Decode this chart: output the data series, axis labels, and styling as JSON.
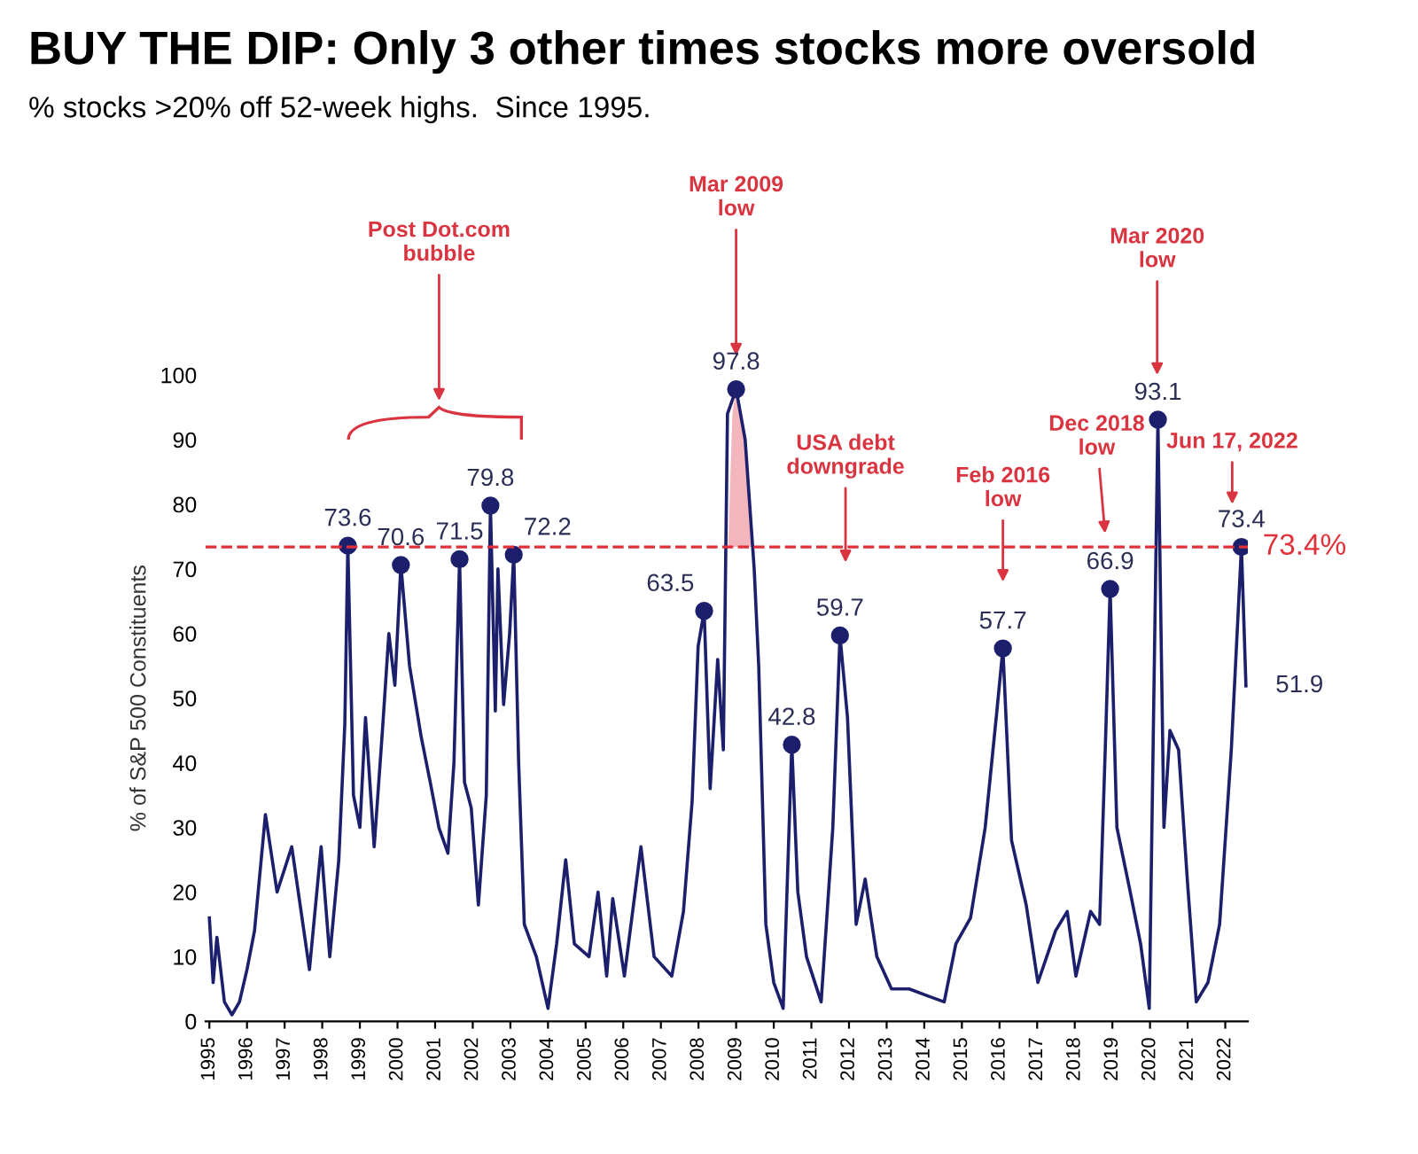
{
  "chart_data": {
    "type": "line",
    "title": "BUY THE DIP: Only 3 other times stocks more oversold",
    "subtitle": "% stocks >20% off 52-week highs.  Since 1995.",
    "ylabel": "% of S&P 500 Constituents",
    "xlim": [
      1994.9,
      2022.6
    ],
    "xticks": [
      1995,
      1996,
      1997,
      1998,
      1999,
      2000,
      2001,
      2002,
      2003,
      2004,
      2005,
      2006,
      2007,
      2008,
      2009,
      2010,
      2011,
      2012,
      2013,
      2014,
      2015,
      2016,
      2017,
      2018,
      2019,
      2020,
      2021,
      2022
    ],
    "ylim": [
      0,
      100
    ],
    "yticks": [
      0,
      10,
      20,
      30,
      40,
      50,
      60,
      70,
      80,
      90,
      100
    ],
    "grid": false,
    "legend": false,
    "marker": "none",
    "line_style": "solid",
    "series": [
      {
        "color": "#1c1f6b",
        "x": [
          1995.0,
          1995.1,
          1995.2,
          1995.4,
          1995.6,
          1995.8,
          1996.0,
          1996.2,
          1996.49,
          1996.8,
          1997.19,
          1997.66,
          1997.97,
          1998.2,
          1998.44,
          1998.6,
          1998.68,
          1998.83,
          1999.0,
          1999.15,
          1999.38,
          1999.6,
          1999.77,
          1999.93,
          2000.09,
          2000.32,
          2000.63,
          2000.87,
          2001.1,
          2001.34,
          2001.5,
          2001.65,
          2001.78,
          2001.96,
          2002.15,
          2002.36,
          2002.47,
          2002.6,
          2002.67,
          2002.82,
          2002.98,
          2003.09,
          2003.22,
          2003.37,
          2003.69,
          2004.0,
          2004.23,
          2004.47,
          2004.7,
          2005.09,
          2005.33,
          2005.56,
          2005.72,
          2006.03,
          2006.47,
          2006.82,
          2007.29,
          2007.6,
          2007.83,
          2007.99,
          2008.15,
          2008.31,
          2008.51,
          2008.66,
          2008.77,
          2009.0,
          2009.24,
          2009.48,
          2009.6,
          2009.79,
          2010.0,
          2010.25,
          2010.48,
          2010.64,
          2010.87,
          2011.26,
          2011.57,
          2011.76,
          2011.96,
          2012.19,
          2012.43,
          2012.74,
          2013.13,
          2013.6,
          2014.06,
          2014.53,
          2014.84,
          2015.23,
          2015.62,
          2015.93,
          2016.09,
          2016.32,
          2016.71,
          2017.02,
          2017.49,
          2017.8,
          2018.03,
          2018.42,
          2018.66,
          2018.81,
          2018.94,
          2019.12,
          2019.44,
          2019.75,
          2019.98,
          2020.21,
          2020.37,
          2020.53,
          2020.76,
          2020.99,
          2021.23,
          2021.54,
          2021.85,
          2022.16,
          2022.43,
          2022.55
        ],
        "values": [
          16,
          6,
          13,
          3,
          1,
          3,
          8,
          14,
          32,
          20,
          27,
          8,
          27,
          10,
          25,
          46,
          73.6,
          35,
          30,
          47,
          27,
          45,
          60,
          52,
          70.6,
          55,
          44,
          37,
          30,
          26,
          40,
          71.5,
          37,
          33,
          18,
          35,
          79.8,
          48,
          70,
          49,
          60,
          72.2,
          40,
          15,
          10,
          2,
          12,
          25,
          12,
          10,
          20,
          7,
          19,
          7,
          27,
          10,
          7,
          17,
          34,
          58,
          63.5,
          36,
          56,
          42,
          94,
          97.8,
          90,
          70,
          55,
          15,
          6,
          2,
          42.8,
          20,
          10,
          3,
          30,
          59.7,
          47,
          15,
          22,
          10,
          5,
          5,
          4,
          3,
          12,
          16,
          30,
          48,
          57.7,
          28,
          18,
          6,
          14,
          17,
          7,
          17,
          15,
          42,
          66.9,
          30,
          21,
          12,
          2,
          93.1,
          30,
          45,
          42,
          22,
          3,
          6,
          15,
          42,
          73.4,
          51.9
        ],
        "value_labels": [
          null,
          null,
          null,
          null,
          null,
          null,
          null,
          null,
          null,
          null,
          null,
          null,
          null,
          null,
          null,
          null,
          null,
          null,
          null,
          null,
          null,
          null,
          null,
          null,
          null,
          null,
          null,
          null,
          null,
          null,
          null,
          null,
          null,
          null,
          null,
          null,
          null,
          null,
          null,
          null,
          null,
          null,
          null,
          null,
          null,
          null,
          null,
          null,
          null,
          null,
          null,
          null,
          null,
          null,
          null,
          null,
          null,
          null,
          null,
          null,
          null,
          null,
          null,
          null,
          null,
          null,
          null,
          null,
          null,
          null,
          null,
          null,
          null,
          null,
          null,
          null,
          null,
          null,
          null,
          null,
          null,
          null,
          null,
          null,
          null,
          null,
          null,
          null,
          null,
          null,
          null,
          null,
          null,
          null,
          null,
          null,
          null,
          null,
          null,
          null,
          null,
          null,
          null,
          null,
          null,
          null,
          null,
          null,
          null,
          null,
          null,
          null,
          null,
          null,
          null,
          "51.9"
        ]
      },
      {
        "type": "area",
        "color": "#f4b6bd",
        "x": [
          2008.79,
          2008.9,
          2009.0,
          2009.24,
          2009.42
        ],
        "values": [
          73.4,
          94,
          97.8,
          90,
          73.4
        ]
      },
      {
        "type": "scatter",
        "color": "#1c1f6b",
        "marker": "circle",
        "x": [
          1998.68,
          2000.09,
          2001.65,
          2002.47,
          2003.09,
          2008.15,
          2009.0,
          2010.48,
          2011.76,
          2016.09,
          2018.94,
          2020.21,
          2022.43
        ],
        "values": [
          73.6,
          70.6,
          71.5,
          79.8,
          72.2,
          63.5,
          97.8,
          42.8,
          59.7,
          57.7,
          66.9,
          93.1,
          73.4
        ],
        "value_labels": [
          "73.6",
          "70.6",
          "71.5",
          "79.8",
          "72.2",
          "63.5",
          "97.8",
          "42.8",
          "59.7",
          "57.7",
          "66.9",
          "93.1",
          "73.4"
        ]
      }
    ],
    "ref_lines": [
      {
        "axis": "y",
        "value": 73.4,
        "label": "73.4%",
        "color": "#e0303a",
        "line_style": "dashed"
      }
    ],
    "annotations": [
      "Post Dot.com\nbubble",
      "Mar 2009\nlow",
      "USA debt\ndowngrade",
      "Feb 2016\nlow",
      "Dec 2018\nlow",
      "Mar 2020\nlow",
      "Jun 17, 2022"
    ]
  }
}
